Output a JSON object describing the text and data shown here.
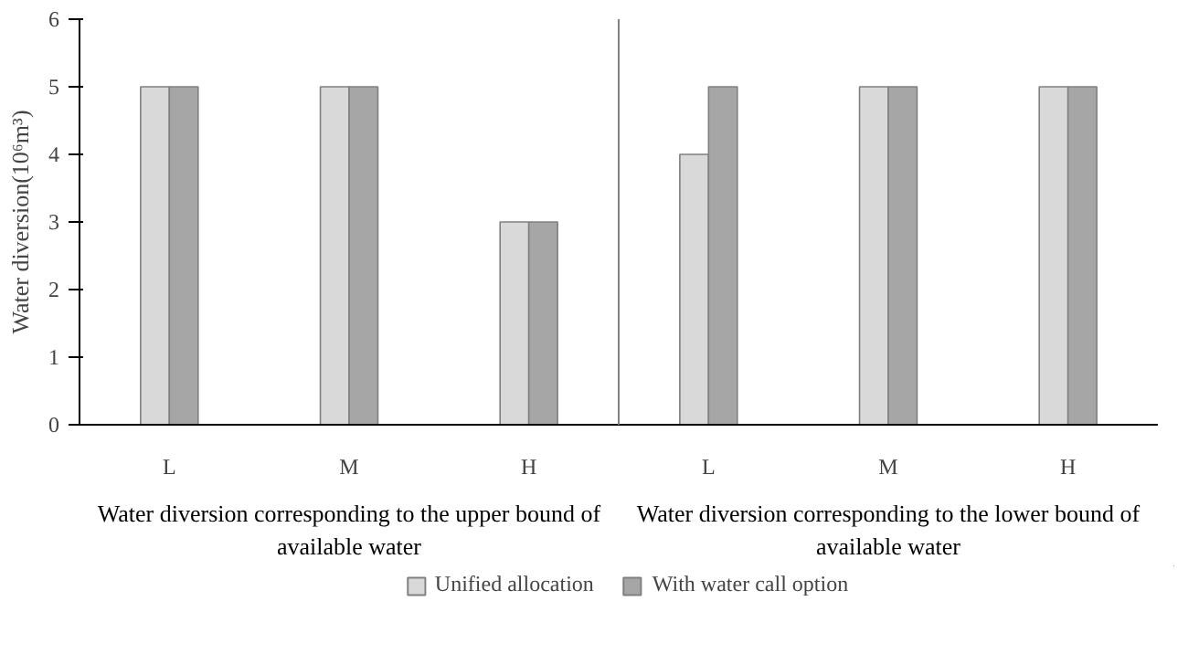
{
  "chart_data": {
    "type": "bar",
    "ylabel": "Water diversion(10⁶m³)",
    "categories": [
      "L",
      "M",
      "H",
      "L",
      "M",
      "H"
    ],
    "series": [
      {
        "name": "Unified allocation",
        "color": "#d9d9d9",
        "values": [
          5,
          5,
          3,
          4,
          5,
          5
        ]
      },
      {
        "name": "With water call option",
        "color": "#a6a6a6",
        "values": [
          5,
          5,
          3,
          5,
          5,
          5
        ]
      }
    ],
    "ylim": [
      0,
      6
    ],
    "yticks": [
      0,
      1,
      2,
      3,
      4,
      5,
      6
    ],
    "grid": false,
    "legend": "bottom",
    "annotations": [
      "Water diversion corresponding to the upper bound of available water",
      "Water diversion corresponding to the lower bound of available water"
    ]
  }
}
